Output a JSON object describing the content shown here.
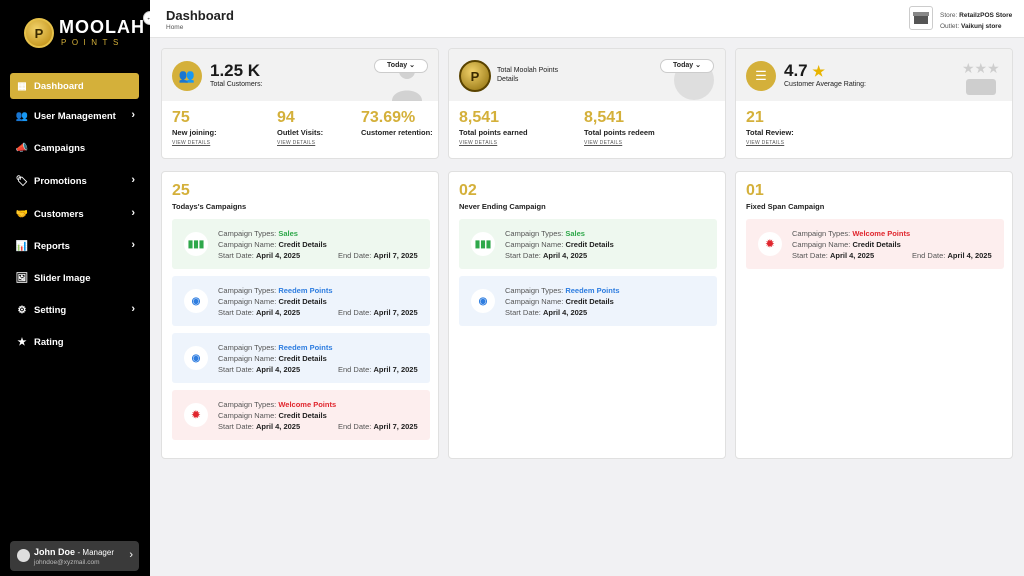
{
  "brand": {
    "name": "MOOLAH",
    "tag": "POINTS",
    "coin_glyph": "P"
  },
  "sidebar": {
    "items": [
      {
        "label": "Dashboard",
        "icon": "grid-icon",
        "glyph": "▦",
        "chevron": false,
        "active": true
      },
      {
        "label": "User Management",
        "icon": "users-icon",
        "glyph": "👥",
        "chevron": true,
        "active": false
      },
      {
        "label": "Campaigns",
        "icon": "megaphone-icon",
        "glyph": "📣",
        "chevron": false,
        "active": false
      },
      {
        "label": "Promotions",
        "icon": "tag-icon",
        "glyph": "🏷",
        "chevron": true,
        "active": false
      },
      {
        "label": "Customers",
        "icon": "handshake-icon",
        "glyph": "🤝",
        "chevron": true,
        "active": false
      },
      {
        "label": "Reports",
        "icon": "bar-chart-icon",
        "glyph": "📊",
        "chevron": true,
        "active": false
      },
      {
        "label": "Slider Image",
        "icon": "image-icon",
        "glyph": "🖼",
        "chevron": false,
        "active": false
      },
      {
        "label": "Setting",
        "icon": "gear-icon",
        "glyph": "⚙",
        "chevron": true,
        "active": false
      },
      {
        "label": "Rating",
        "icon": "rating-icon",
        "glyph": "★",
        "chevron": false,
        "active": false
      }
    ],
    "user": {
      "name": "John Doe",
      "role": "- Manager",
      "email": "johndoe@xyzmail.com"
    }
  },
  "header": {
    "title": "Dashboard",
    "breadcrumb": "Home",
    "store_label": "Store:",
    "store_value": "RetailzPOS Store",
    "outlet_label": "Outlet:",
    "outlet_value": "Vaikunj store"
  },
  "customers": {
    "total": "1.25 K",
    "label": "Total Customers:",
    "filter": "Today",
    "stats": [
      {
        "value": "75",
        "label": "New joining:",
        "link": "VIEW DETAILS"
      },
      {
        "value": "94",
        "label": "Outlet Visits:",
        "link": "VIEW DETAILS"
      },
      {
        "value": "73.69%",
        "label": "Customer retention:",
        "link": ""
      }
    ]
  },
  "points": {
    "label1": "Total Moolah Points",
    "label2": "Details",
    "filter": "Today",
    "stats": [
      {
        "value": "8,541",
        "label": "Total points earned",
        "link": "VIEW DETAILS"
      },
      {
        "value": "8,541",
        "label": "Total points redeem",
        "link": "VIEW DETAILS"
      }
    ]
  },
  "rating": {
    "value": "4.7",
    "star": "★",
    "label": "Customer Average Rating:",
    "stats": [
      {
        "value": "21",
        "label": "Total Review:",
        "link": "VIEW DETAILS"
      }
    ]
  },
  "campaign_labels": {
    "type": "Campaign Types:",
    "name": "Campaign Name:",
    "start": "Start Date:",
    "end": "End Date:"
  },
  "campaign_groups": [
    {
      "count": "25",
      "title": "Todays's Campaigns",
      "items": [
        {
          "kind": "green",
          "type": "Sales",
          "name": "Credit Details",
          "start": "April 4, 2025",
          "end": "April 7, 2025"
        },
        {
          "kind": "blue",
          "type": "Reedem Points",
          "name": "Credit Details",
          "start": "April 4, 2025",
          "end": "April 7, 2025"
        },
        {
          "kind": "blue",
          "type": "Reedem Points",
          "name": "Credit Details",
          "start": "April 4, 2025",
          "end": "April 7, 2025"
        },
        {
          "kind": "red",
          "type": "Welcome  Points",
          "name": "Credit Details",
          "start": "April 4, 2025",
          "end": "April 7, 2025"
        }
      ]
    },
    {
      "count": "02",
      "title": "Never Ending Campaign",
      "items": [
        {
          "kind": "green",
          "type": "Sales",
          "name": "Credit Details",
          "start": "April 4, 2025",
          "end": ""
        },
        {
          "kind": "blue",
          "type": "Reedem Points",
          "name": "Credit Details",
          "start": "April 4, 2025",
          "end": ""
        }
      ]
    },
    {
      "count": "01",
      "title": "Fixed Span Campaign",
      "items": [
        {
          "kind": "red",
          "type": "Welcome  Points",
          "name": "Credit Details",
          "start": "April 4, 2025",
          "end": "April 4, 2025"
        }
      ]
    }
  ],
  "colors": {
    "gold": "#d4b03a",
    "sidebar": "#000000",
    "green": "#2ea84a",
    "blue": "#2e7de0",
    "red": "#e0262e"
  }
}
